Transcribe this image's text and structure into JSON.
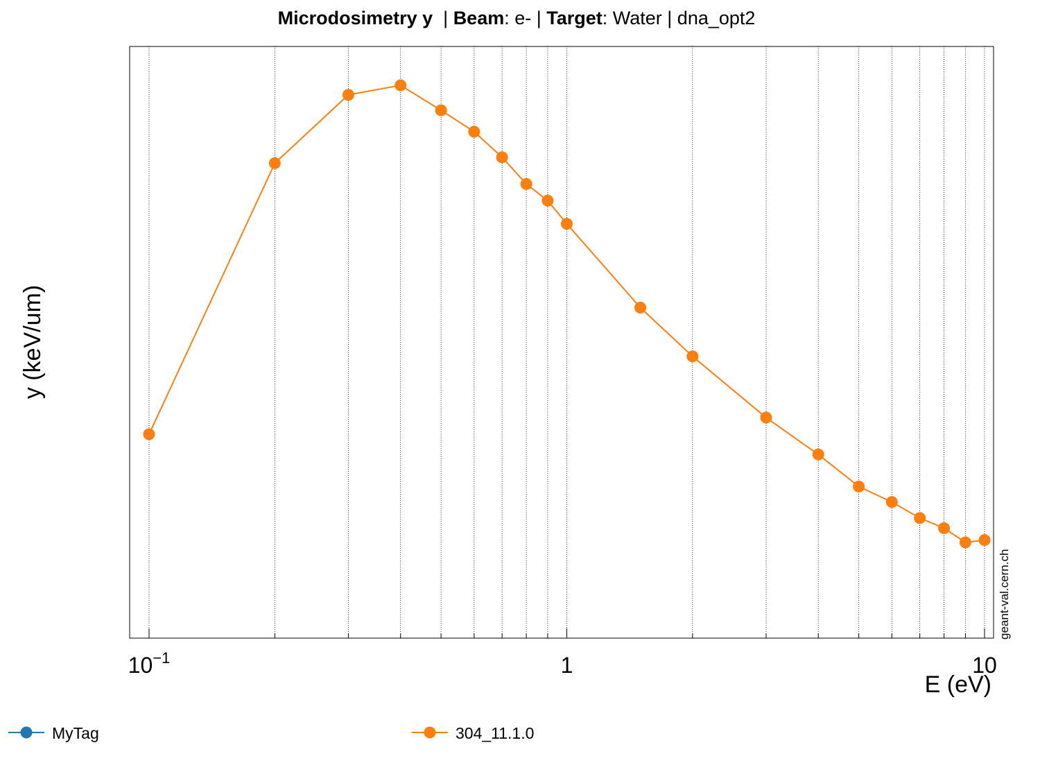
{
  "chart_data": {
    "type": "line",
    "title_parts": {
      "observable": "Microdosimetry y",
      "sep1": "  | ",
      "beam_key": "Beam",
      "beam_val": ": e- | ",
      "target_key": "Target",
      "target_val": ": Water | dna_opt2"
    },
    "xlabel": "E (eV)",
    "ylabel": "y (keV/um)",
    "x_scale": "log",
    "xlim": [
      0.1,
      10
    ],
    "y_tick_labels_shown": false,
    "grid": "vertical",
    "x_tick_labels": [
      {
        "value": 0.1,
        "base": "10",
        "exp": "−1"
      },
      {
        "value": 1,
        "base": "1",
        "exp": ""
      },
      {
        "value": 10,
        "base": "10",
        "exp": ""
      }
    ],
    "minor_grid_x": [
      0.2,
      0.3,
      0.4,
      0.5,
      0.6,
      0.7,
      0.8,
      0.9,
      2,
      3,
      4,
      5,
      6,
      7,
      8,
      9
    ],
    "watermark": "geant-val.cern.ch",
    "legend_placement": "bottom",
    "series": [
      {
        "name": "MyTag",
        "color": "#1f77b4",
        "x": [],
        "y": []
      },
      {
        "name": "304_11.1.0",
        "color": "#ff7f0e",
        "x": [
          0.1,
          0.2,
          0.3,
          0.4,
          0.5,
          0.6,
          0.7,
          0.8,
          0.9,
          1.0,
          1.5,
          2,
          3,
          4,
          5,
          6,
          7,
          8,
          9,
          10
        ],
        "y": [
          0.345,
          0.801,
          0.916,
          0.932,
          0.89,
          0.854,
          0.811,
          0.766,
          0.738,
          0.699,
          0.558,
          0.476,
          0.373,
          0.311,
          0.257,
          0.231,
          0.204,
          0.187,
          0.163,
          0.167
        ]
      }
    ]
  }
}
